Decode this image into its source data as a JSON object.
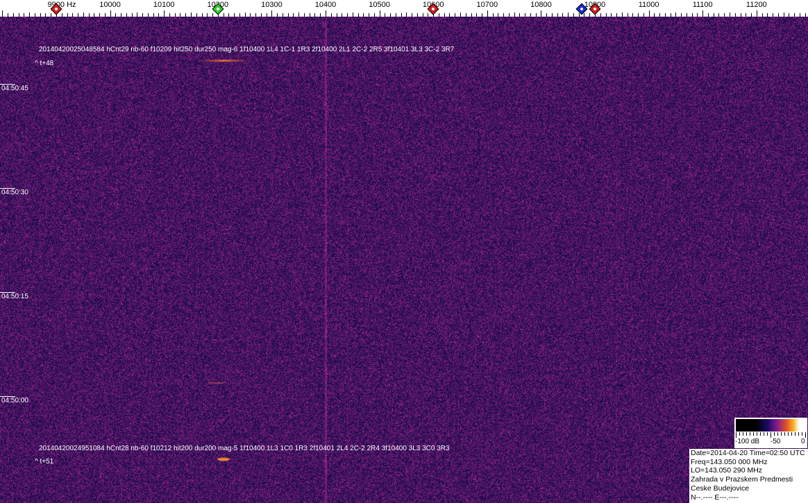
{
  "frequency_axis": {
    "labels": [
      "9900 Hz",
      "10000",
      "10100",
      "10200",
      "10300",
      "10400",
      "10500",
      "10600",
      "10700",
      "10800",
      "10900",
      "11000",
      "11100",
      "11200"
    ],
    "values": [
      9900,
      10000,
      10100,
      10200,
      10300,
      10400,
      10500,
      10600,
      10700,
      10800,
      10900,
      11000,
      11100,
      11200
    ]
  },
  "markers": [
    {
      "freq": 9900,
      "color": "#d42020"
    },
    {
      "freq": 10200,
      "color": "#30d030"
    },
    {
      "freq": 10600,
      "color": "#d42020"
    },
    {
      "freq": 10875,
      "color": "#1a2ad0"
    },
    {
      "freq": 10900,
      "color": "#d42020"
    }
  ],
  "time_labels": [
    "04:50:45",
    "04:50:30",
    "04:50:15",
    "04:50:00"
  ],
  "detections": [
    {
      "line": "20140420025048584 hCnt29 nb-60 f10209 hit250 dur250 mag-6 1f10400 1L4 1C-1 1R3 2f10400 2L1 2C-2 2R5 3f10401 3L3 3C-2 3R7",
      "offset": "^ t+48"
    },
    {
      "line": "20140420024951084 hCnt28 nb-60 f10212 hit200 dur200 mag-5 1f10400 1L3 1C0 1R3 2f10401 2L4 2C-2 2R4 3f10400 3L3 3C0 3R3",
      "offset": "^ t+51"
    }
  ],
  "colorbar": {
    "labels": [
      "-100 dB",
      "-50",
      "0"
    ]
  },
  "info": {
    "date_time": "Date=2014-04-20 Time=02:50 UTC",
    "freq": "Freq=143.050 000 MHz",
    "lo": "LO=143.050 290 MHz",
    "location": "Zahrada v Prazskem Predmesti",
    "city": "Ceske Budejovice",
    "coords": "N--.---- E---.----"
  }
}
